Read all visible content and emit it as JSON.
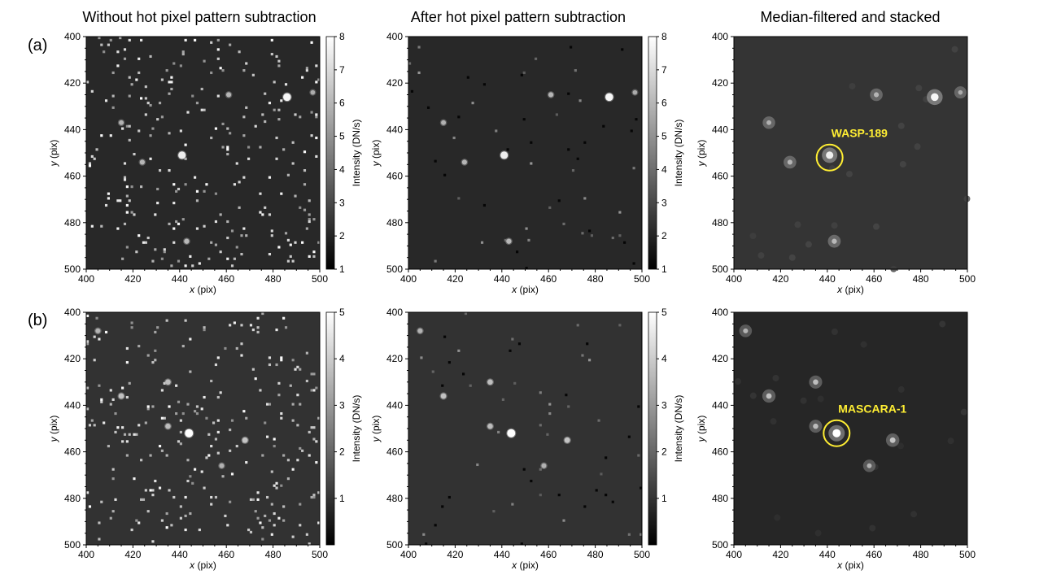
{
  "column_titles": [
    "Without hot pixel pattern subtraction",
    "After hot pixel pattern subtraction",
    "Median-filtered and stacked"
  ],
  "row_labels": [
    "(a)",
    "(b)"
  ],
  "axis_labels": {
    "x_var": "x",
    "x_unit": " (pix)",
    "y_var": "y",
    "y_unit": " (pix)"
  },
  "colorbar_label": "Intensity (DN/s)",
  "annotation_color": "#ffee33",
  "chart_data": [
    {
      "type": "heatmap",
      "panel": "a-left",
      "title": "Without hot pixel pattern subtraction",
      "xlim": [
        400,
        500
      ],
      "ylim": [
        400,
        500
      ],
      "y_inverted": true,
      "x_ticks": [
        400,
        420,
        440,
        460,
        480,
        500
      ],
      "y_ticks": [
        400,
        420,
        440,
        460,
        480,
        500
      ],
      "colorbar": {
        "range": [
          1,
          8
        ],
        "ticks": [
          1,
          2,
          3,
          4,
          5,
          6,
          7,
          8
        ]
      },
      "background": 2.2,
      "hot_pixels": true,
      "stars": [
        [
          486,
          426,
          7.5
        ],
        [
          441,
          451,
          7
        ],
        [
          461,
          425,
          3.6
        ],
        [
          443,
          488,
          3.8
        ],
        [
          424,
          454,
          3.6
        ],
        [
          415,
          437,
          3.4
        ],
        [
          497,
          424,
          3
        ]
      ]
    },
    {
      "type": "heatmap",
      "panel": "a-middle",
      "title": "After hot pixel pattern subtraction",
      "xlim": [
        400,
        500
      ],
      "ylim": [
        400,
        500
      ],
      "y_inverted": true,
      "x_ticks": [
        400,
        420,
        440,
        460,
        480,
        500
      ],
      "y_ticks": [
        400,
        420,
        440,
        460,
        480,
        500
      ],
      "colorbar": {
        "range": [
          1,
          8
        ],
        "ticks": [
          1,
          2,
          3,
          4,
          5,
          6,
          7,
          8
        ]
      },
      "background": 2.2,
      "hot_pixels": false,
      "stars": [
        [
          486,
          426,
          7.5
        ],
        [
          441,
          451,
          7
        ],
        [
          461,
          425,
          3.6
        ],
        [
          443,
          488,
          3.8
        ],
        [
          424,
          454,
          3.6
        ],
        [
          415,
          437,
          3.4
        ],
        [
          497,
          424,
          3
        ]
      ]
    },
    {
      "type": "heatmap",
      "panel": "a-right",
      "title": "Median-filtered and stacked",
      "xlim": [
        400,
        500
      ],
      "ylim": [
        400,
        500
      ],
      "y_inverted": true,
      "x_ticks": [
        400,
        420,
        440,
        460,
        480,
        500
      ],
      "y_ticks": [
        400,
        420,
        440,
        460,
        480,
        500
      ],
      "stars": [
        [
          486,
          426,
          7.5
        ],
        [
          441,
          451,
          7
        ],
        [
          461,
          425,
          3.6
        ],
        [
          443,
          488,
          3.8
        ],
        [
          424,
          454,
          3.6
        ],
        [
          415,
          437,
          3.4
        ],
        [
          497,
          424,
          3
        ]
      ],
      "annotation": {
        "label": "WASP-189",
        "x": 441,
        "y": 452
      }
    },
    {
      "type": "heatmap",
      "panel": "b-left",
      "title": "Without hot pixel pattern subtraction",
      "xlim": [
        400,
        500
      ],
      "ylim": [
        400,
        500
      ],
      "y_inverted": true,
      "x_ticks": [
        400,
        420,
        440,
        460,
        480,
        500
      ],
      "y_ticks": [
        400,
        420,
        440,
        460,
        480,
        500
      ],
      "colorbar": {
        "range": [
          0,
          5
        ],
        "ticks": [
          1,
          2,
          3,
          4,
          5
        ]
      },
      "background": 1.3,
      "hot_pixels": true,
      "stars": [
        [
          444,
          452,
          5
        ],
        [
          468,
          455,
          2.8
        ],
        [
          415,
          436,
          2.7
        ],
        [
          435,
          430,
          2.6
        ],
        [
          435,
          449,
          2.5
        ],
        [
          405,
          408,
          2.2
        ],
        [
          458,
          466,
          2.1
        ]
      ]
    },
    {
      "type": "heatmap",
      "panel": "b-middle",
      "title": "After hot pixel pattern subtraction",
      "xlim": [
        400,
        500
      ],
      "ylim": [
        400,
        500
      ],
      "y_inverted": true,
      "x_ticks": [
        400,
        420,
        440,
        460,
        480,
        500
      ],
      "y_ticks": [
        400,
        420,
        440,
        460,
        480,
        500
      ],
      "colorbar": {
        "range": [
          0,
          5
        ],
        "ticks": [
          1,
          2,
          3,
          4,
          5
        ]
      },
      "background": 1.3,
      "hot_pixels": false,
      "stars": [
        [
          444,
          452,
          5
        ],
        [
          468,
          455,
          2.8
        ],
        [
          415,
          436,
          2.7
        ],
        [
          435,
          430,
          2.6
        ],
        [
          435,
          449,
          2.5
        ],
        [
          405,
          408,
          2.2
        ],
        [
          458,
          466,
          2.1
        ]
      ]
    },
    {
      "type": "heatmap",
      "panel": "b-right",
      "title": "Median-filtered and stacked",
      "xlim": [
        400,
        500
      ],
      "ylim": [
        400,
        500
      ],
      "y_inverted": true,
      "x_ticks": [
        400,
        420,
        440,
        460,
        480,
        500
      ],
      "y_ticks": [
        400,
        420,
        440,
        460,
        480,
        500
      ],
      "stars": [
        [
          444,
          452,
          5
        ],
        [
          468,
          455,
          2.8
        ],
        [
          415,
          436,
          2.7
        ],
        [
          435,
          430,
          2.6
        ],
        [
          435,
          449,
          2.5
        ],
        [
          405,
          408,
          2.2
        ],
        [
          458,
          466,
          2.1
        ]
      ],
      "annotation": {
        "label": "MASCARA-1",
        "x": 444,
        "y": 452
      }
    }
  ]
}
